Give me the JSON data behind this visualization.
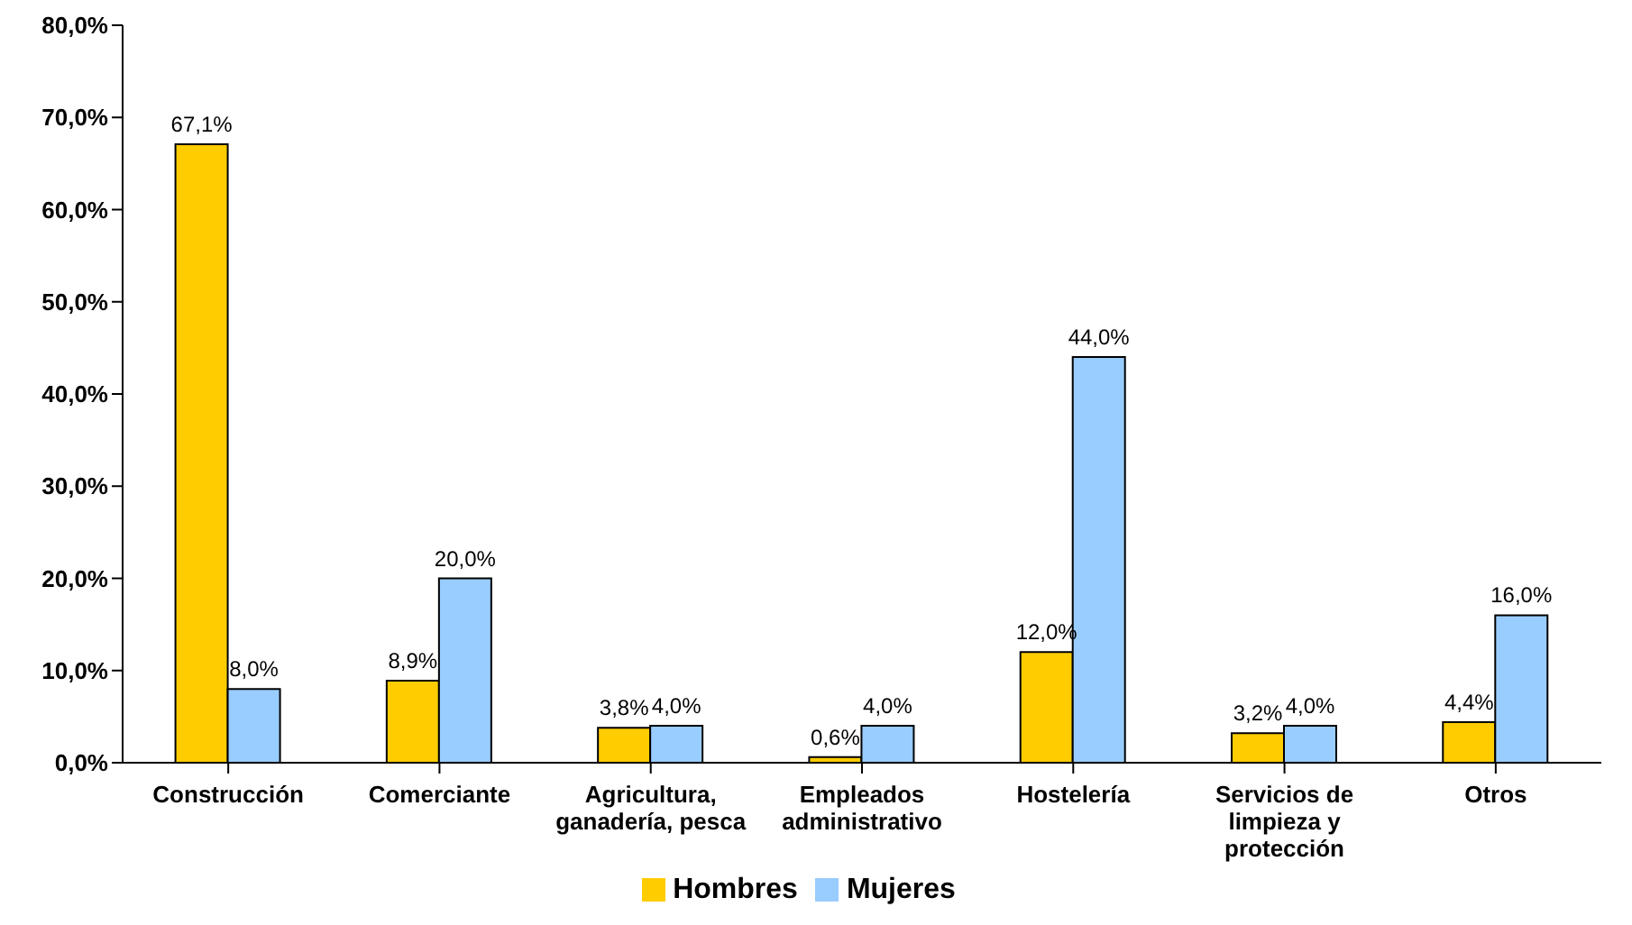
{
  "chart_data": {
    "type": "bar",
    "categories": [
      "Construcción",
      "Comerciante",
      "Agricultura, ganadería, pesca",
      "Empleados administrativo",
      "Hostelería",
      "Servicios de limpieza y protección",
      "Otros"
    ],
    "series": [
      {
        "name": "Hombres",
        "color": "#ffcc00",
        "values": [
          67.1,
          8.9,
          3.8,
          0.6,
          12.0,
          3.2,
          4.4
        ],
        "value_labels": [
          "67,1%",
          "8,9%",
          "3,8%",
          "0,6%",
          "12,0%",
          "3,2%",
          "4,4%"
        ]
      },
      {
        "name": "Mujeres",
        "color": "#99ccff",
        "values": [
          8.0,
          20.0,
          4.0,
          4.0,
          44.0,
          4.0,
          16.0
        ],
        "value_labels": [
          "8,0%",
          "20,0%",
          "4,0%",
          "4,0%",
          "44,0%",
          "4,0%",
          "16,0%"
        ]
      }
    ],
    "ylim": [
      0,
      80
    ],
    "yticks": [
      {
        "value": 0,
        "label": "0,0%"
      },
      {
        "value": 10,
        "label": "10,0%"
      },
      {
        "value": 20,
        "label": "20,0%"
      },
      {
        "value": 30,
        "label": "30,0%"
      },
      {
        "value": 40,
        "label": "40,0%"
      },
      {
        "value": 50,
        "label": "50,0%"
      },
      {
        "value": 60,
        "label": "60,0%"
      },
      {
        "value": 70,
        "label": "70,0%"
      },
      {
        "value": 80,
        "label": "80,0%"
      }
    ],
    "grid": false,
    "legend": "bottom"
  }
}
